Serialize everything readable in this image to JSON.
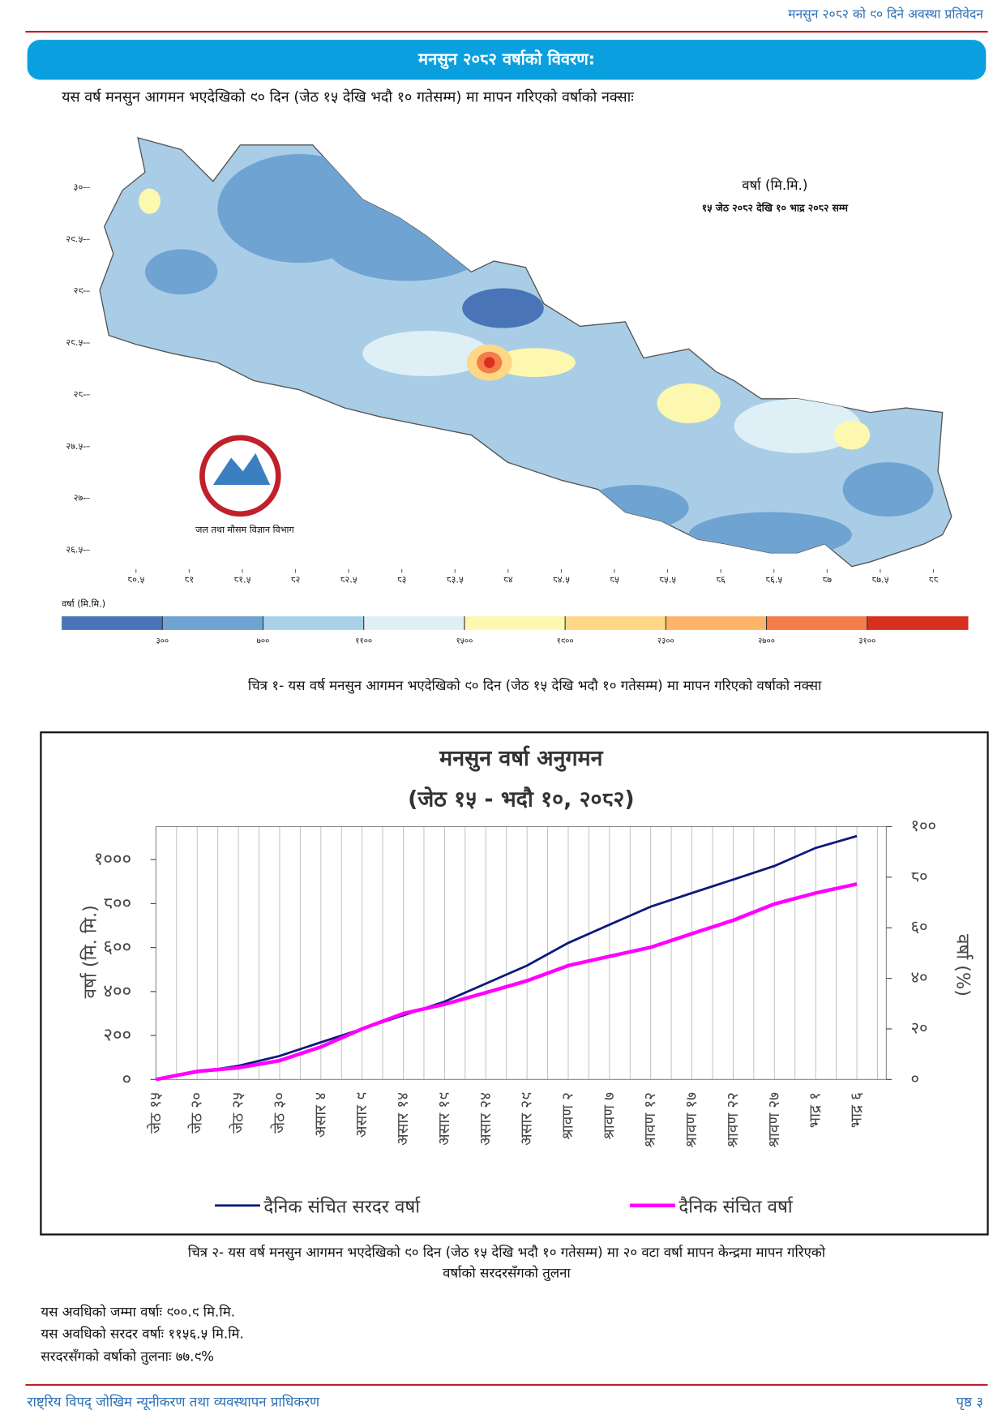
{
  "header": {
    "report_title": "मनसुन २०८२ को ९० दिने अवस्था प्रतिवेदन",
    "section_title": "मनसुन २०८२ वर्षाको विवरण:",
    "intro": "यस वर्ष मनसुन आगमन भएदेखिको ९० दिन (जेठ १५ देखि भदौ १० गतेसम्म) मा मापन गरिएको वर्षाको नक्साः"
  },
  "map": {
    "legend_title": "वर्षा (मि.मि.)",
    "legend_period": "१५ जेठ २०८२ देखि  १० भाद्र २०८२ सम्म",
    "logo_text": "जल तथा मौसम विज्ञान विभाग",
    "lat_ticks": [
      {
        "value": 30,
        "label": "३०-"
      },
      {
        "value": 29.5,
        "label": "२९.५-"
      },
      {
        "value": 29,
        "label": "२९-"
      },
      {
        "value": 28.5,
        "label": "२८.५-"
      },
      {
        "value": 28,
        "label": "२८-"
      },
      {
        "value": 27.5,
        "label": "२७.५-"
      },
      {
        "value": 27,
        "label": "२७-"
      },
      {
        "value": 26.5,
        "label": "२६.५-"
      }
    ],
    "lon_ticks": [
      {
        "value": 80.5,
        "label": "८०.५"
      },
      {
        "value": 81,
        "label": "८१"
      },
      {
        "value": 81.5,
        "label": "८१.५"
      },
      {
        "value": 82,
        "label": "८२"
      },
      {
        "value": 82.5,
        "label": "८२.५"
      },
      {
        "value": 83,
        "label": "८३"
      },
      {
        "value": 83.5,
        "label": "८३.५"
      },
      {
        "value": 84,
        "label": "८४"
      },
      {
        "value": 84.5,
        "label": "८४.५"
      },
      {
        "value": 85,
        "label": "८५"
      },
      {
        "value": 85.5,
        "label": "८५.५"
      },
      {
        "value": 86,
        "label": "८६"
      },
      {
        "value": 86.5,
        "label": "८६.५"
      },
      {
        "value": 87,
        "label": "८७"
      },
      {
        "value": 87.5,
        "label": "८७.५"
      },
      {
        "value": 88,
        "label": "८८"
      }
    ],
    "colorbar_title": "वर्षा (मि.मि.)",
    "colorbar_colors": [
      "#4a74b8",
      "#6fa3d1",
      "#a9d2e8",
      "#def0f6",
      "#fdf8b0",
      "#fed884",
      "#fdb46a",
      "#f57d4a",
      "#d7301f"
    ],
    "colorbar_breaks": [
      {
        "value": 300,
        "label": "३००"
      },
      {
        "value": 700,
        "label": "७००"
      },
      {
        "value": 1100,
        "label": "११००"
      },
      {
        "value": 1500,
        "label": "१५००"
      },
      {
        "value": 1900,
        "label": "१९००"
      },
      {
        "value": 2300,
        "label": "२३००"
      },
      {
        "value": 2700,
        "label": "२७००"
      },
      {
        "value": 3100,
        "label": "३१००"
      }
    ],
    "caption": "चित्र १- यस वर्ष मनसुन आगमन भएदेखिको ९० दिन (जेठ १५ देखि भदौ १० गतेसम्म) मा मापन गरिएको वर्षाको नक्सा"
  },
  "chart": {
    "type": "line",
    "title": "मनसुन वर्षा अनुगमन",
    "subtitle": "(जेठ १५ - भदौ १०, २०८२)",
    "y_label": "वर्षा (मि. मि.)",
    "y2_label": "वर्षा (%)",
    "categories": [
      "जेठ १५",
      "जेठ २०",
      "जेठ २५",
      "जेठ ३०",
      "असार ४",
      "असार ९",
      "असार १४",
      "असार १९",
      "असार २४",
      "असार २९",
      "श्रावण २",
      "श्रावण ७",
      "श्रावण १२",
      "श्रावण १७",
      "श्रावण २२",
      "श्रावण २७",
      "भाद्र १",
      "भाद्र ६"
    ],
    "series": [
      {
        "name": "दैनिक संचित सरदर वर्षा",
        "color": "#0c1a7a",
        "values": [
          0,
          33,
          62,
          107,
          169,
          230,
          292,
          354,
          436,
          518,
          621,
          704,
          786,
          848,
          909,
          971,
          1053,
          1107
        ]
      },
      {
        "name": "दैनिक संचित वर्षा",
        "color": "#ff00ff",
        "values": [
          0,
          37,
          53,
          86,
          148,
          230,
          300,
          342,
          395,
          449,
          518,
          560,
          601,
          663,
          724,
          798,
          848,
          889
        ]
      }
    ],
    "ylim": [
      0,
      1150
    ],
    "yticks": [
      {
        "value": 0,
        "label": "०"
      },
      {
        "value": 200,
        "label": "२००"
      },
      {
        "value": 400,
        "label": "४००"
      },
      {
        "value": 600,
        "label": "६००"
      },
      {
        "value": 800,
        "label": "८००"
      },
      {
        "value": 1000,
        "label": "१०००"
      }
    ],
    "y2lim": [
      0,
      100
    ],
    "y2ticks": [
      {
        "value": 0,
        "label": "०"
      },
      {
        "value": 20,
        "label": "२०"
      },
      {
        "value": 40,
        "label": "४०"
      },
      {
        "value": 60,
        "label": "६०"
      },
      {
        "value": 80,
        "label": "८०"
      },
      {
        "value": 100,
        "label": "१००"
      }
    ],
    "grid": true,
    "caption": [
      "चित्र २- यस वर्ष मनसुन आगमन भएदेखिको ९० दिन (जेठ १५ देखि भदौ १० गतेसम्म) मा २० वटा वर्षा मापन केन्द्रमा मापन गरिएको",
      "वर्षाको सरदरसँगको तुलना"
    ]
  },
  "stats": [
    "यस अवधिको जम्मा वर्षाः ९००.९ मि.मि.",
    "यस अवधिको सरदर वर्षाः ११५६.५ मि.मि.",
    "सरदरसँगको वर्षाको तुलनाः ७७.९%"
  ],
  "footer": {
    "org": "राष्ट्रिय विपद्  जोखिम न्यूनीकरण तथा व्यवस्थापन प्राधिकरण",
    "page": "पृष्ठ ३"
  }
}
